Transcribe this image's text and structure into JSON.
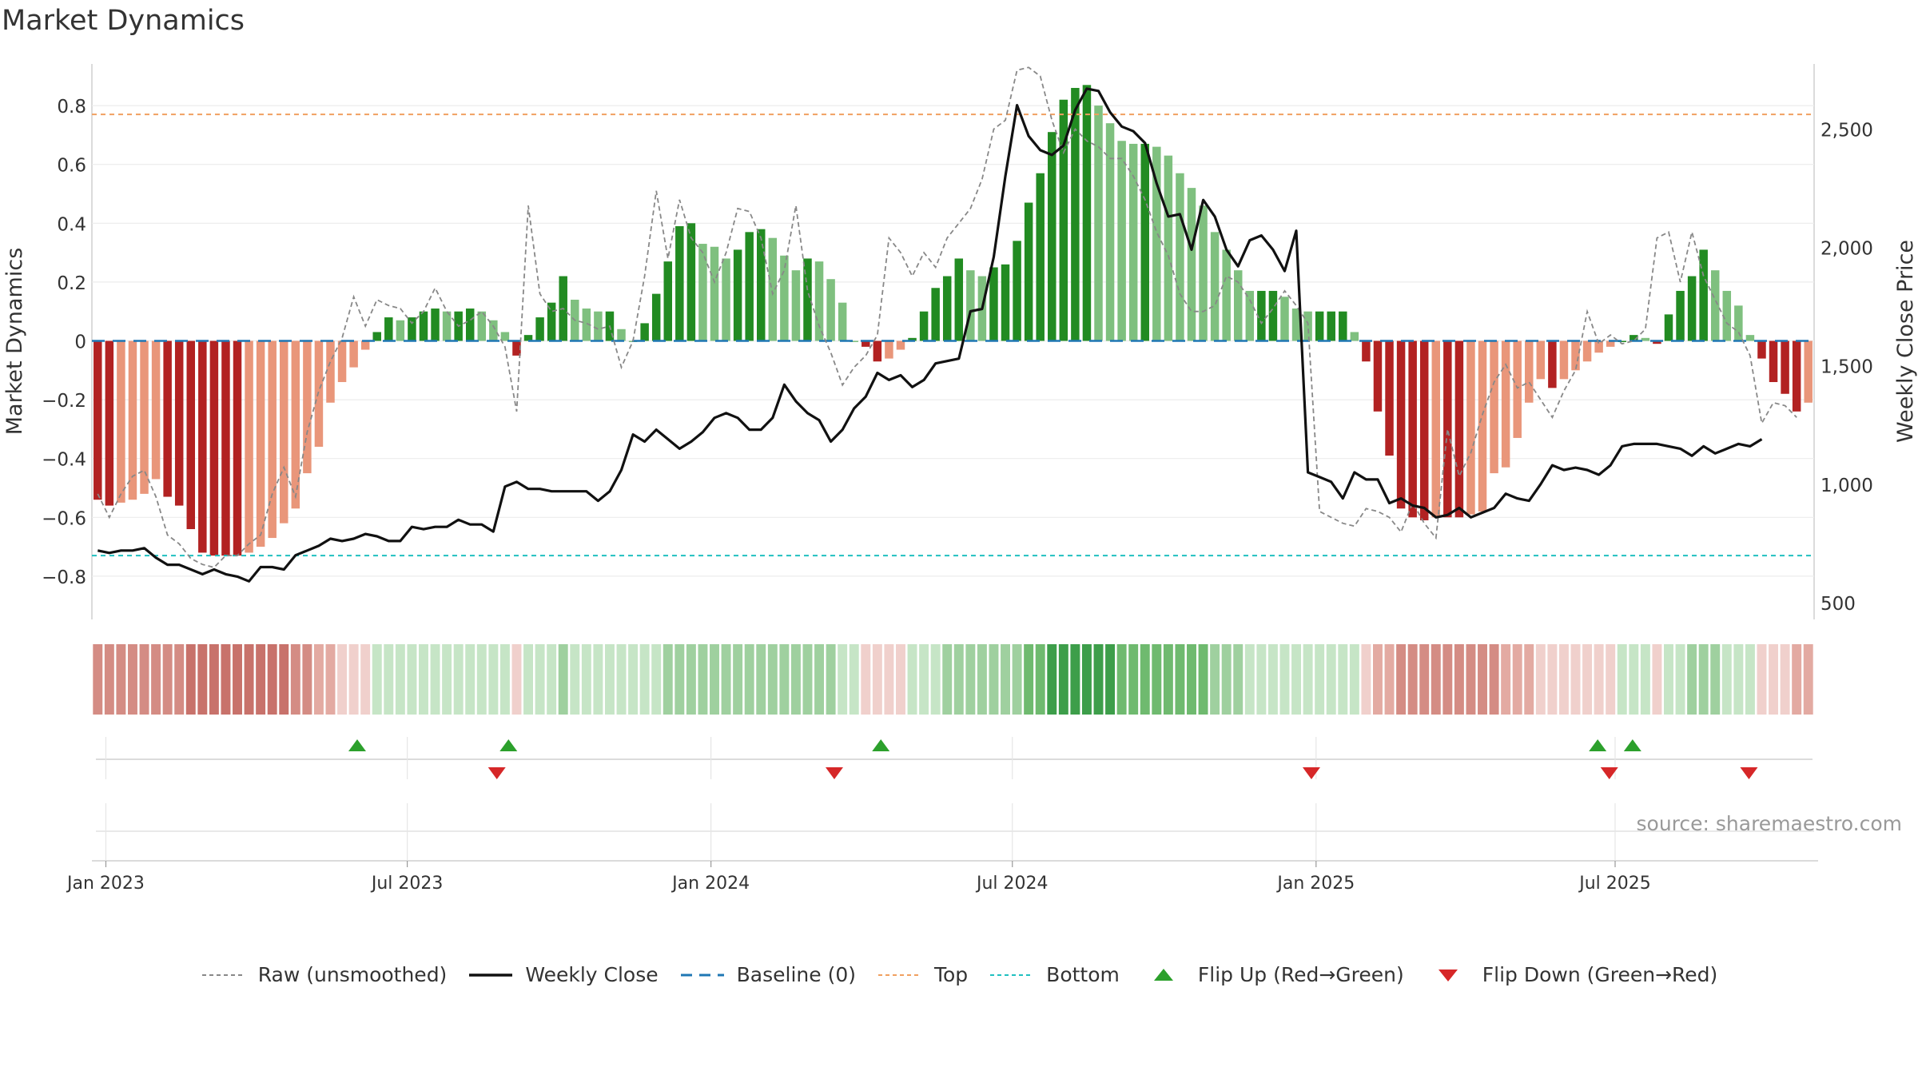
{
  "chart_data": {
    "type": "bar",
    "title": "Market Dynamics",
    "ylabel": "Market Dynamics",
    "y2label": "Weekly Close Price",
    "ylim": [
      -0.92,
      0.93
    ],
    "y2lim": [
      310,
      2760
    ],
    "yticks": [
      -0.8,
      -0.6,
      -0.4,
      -0.2,
      0,
      0.2,
      0.4,
      0.6,
      0.8
    ],
    "ytick_labels": [
      "−0.8",
      "−0.6",
      "−0.4",
      "−0.2",
      "0",
      "0.2",
      "0.4",
      "0.6",
      "0.8"
    ],
    "y2ticks": [
      500,
      1000,
      1500,
      2000,
      2500
    ],
    "y2tick_labels": [
      "500",
      "1,000",
      "1,500",
      "2,000",
      "2,500"
    ],
    "xtick_labels": [
      "Jan 2023",
      "Jul 2023",
      "Jan 2024",
      "Jul 2024",
      "Jan 2025",
      "Jul 2025"
    ],
    "xtick_weeks": [
      0.7,
      26.6,
      52.7,
      78.6,
      104.7,
      130.4
    ],
    "top_line": 0.77,
    "bottom_line": -0.73,
    "market_dynamics": [
      -0.54,
      -0.56,
      -0.55,
      -0.54,
      -0.52,
      -0.47,
      -0.53,
      -0.56,
      -0.64,
      -0.72,
      -0.73,
      -0.73,
      -0.73,
      -0.72,
      -0.7,
      -0.67,
      -0.62,
      -0.57,
      -0.45,
      -0.36,
      -0.21,
      -0.14,
      -0.09,
      -0.03,
      0.03,
      0.08,
      0.07,
      0.08,
      0.1,
      0.11,
      0.1,
      0.1,
      0.11,
      0.1,
      0.07,
      0.03,
      -0.05,
      0.02,
      0.08,
      0.13,
      0.22,
      0.14,
      0.11,
      0.1,
      0.1,
      0.04,
      0.0,
      0.06,
      0.16,
      0.27,
      0.39,
      0.4,
      0.33,
      0.32,
      0.28,
      0.31,
      0.37,
      0.38,
      0.35,
      0.29,
      0.24,
      0.28,
      0.27,
      0.21,
      0.13,
      0.0,
      -0.02,
      -0.07,
      -0.06,
      -0.03,
      0.01,
      0.1,
      0.18,
      0.22,
      0.28,
      0.24,
      0.22,
      0.25,
      0.26,
      0.34,
      0.47,
      0.57,
      0.71,
      0.82,
      0.86,
      0.87,
      0.8,
      0.74,
      0.68,
      0.67,
      0.67,
      0.66,
      0.63,
      0.57,
      0.52,
      0.46,
      0.37,
      0.31,
      0.24,
      0.17,
      0.17,
      0.17,
      0.15,
      0.11,
      0.1,
      0.1,
      0.1,
      0.1,
      0.03,
      -0.07,
      -0.24,
      -0.39,
      -0.57,
      -0.6,
      -0.61,
      -0.6,
      -0.6,
      -0.6,
      -0.59,
      -0.58,
      -0.45,
      -0.43,
      -0.33,
      -0.21,
      -0.13,
      -0.16,
      -0.13,
      -0.1,
      -0.07,
      -0.04,
      -0.02,
      0.0,
      0.02,
      0.01,
      -0.01,
      0.09,
      0.17,
      0.22,
      0.31,
      0.24,
      0.17,
      0.12,
      0.02,
      -0.06,
      -0.14,
      -0.18,
      -0.24,
      -0.21
    ],
    "raw_unsmoothed": [
      -0.52,
      -0.6,
      -0.52,
      -0.46,
      -0.44,
      -0.53,
      -0.66,
      -0.69,
      -0.74,
      -0.76,
      -0.77,
      -0.73,
      -0.73,
      -0.69,
      -0.66,
      -0.52,
      -0.43,
      -0.53,
      -0.31,
      -0.17,
      -0.07,
      0.01,
      0.15,
      0.05,
      0.14,
      0.12,
      0.11,
      0.06,
      0.1,
      0.18,
      0.1,
      0.05,
      0.07,
      0.1,
      0.05,
      -0.02,
      -0.24,
      0.46,
      0.16,
      0.1,
      0.11,
      0.07,
      0.06,
      0.04,
      0.05,
      -0.09,
      0.0,
      0.22,
      0.51,
      0.28,
      0.48,
      0.35,
      0.3,
      0.2,
      0.3,
      0.45,
      0.44,
      0.35,
      0.16,
      0.24,
      0.46,
      0.17,
      0.05,
      -0.04,
      -0.15,
      -0.09,
      -0.05,
      0.02,
      0.35,
      0.3,
      0.22,
      0.3,
      0.25,
      0.35,
      0.4,
      0.45,
      0.55,
      0.72,
      0.75,
      0.92,
      0.93,
      0.9,
      0.75,
      0.64,
      0.72,
      0.68,
      0.66,
      0.62,
      0.62,
      0.56,
      0.48,
      0.37,
      0.29,
      0.16,
      0.1,
      0.1,
      0.12,
      0.22,
      0.2,
      0.14,
      0.06,
      0.11,
      0.17,
      0.12,
      0.06,
      -0.58,
      -0.6,
      -0.62,
      -0.63,
      -0.57,
      -0.58,
      -0.6,
      -0.65,
      -0.55,
      -0.62,
      -0.67,
      -0.3,
      -0.46,
      -0.38,
      -0.25,
      -0.14,
      -0.08,
      -0.16,
      -0.14,
      -0.2,
      -0.26,
      -0.17,
      -0.1,
      0.1,
      -0.01,
      0.02,
      -0.01,
      0.0,
      0.04,
      0.35,
      0.37,
      0.2,
      0.37,
      0.22,
      0.14,
      0.06,
      0.03,
      -0.05,
      -0.28,
      -0.21,
      -0.22,
      -0.26
    ],
    "weekly_close": [
      720,
      710,
      720,
      720,
      730,
      690,
      660,
      660,
      640,
      620,
      640,
      620,
      610,
      590,
      650,
      650,
      640,
      700,
      720,
      740,
      770,
      760,
      770,
      790,
      780,
      760,
      760,
      820,
      810,
      820,
      820,
      850,
      830,
      830,
      800,
      990,
      1010,
      980,
      980,
      970,
      970,
      970,
      970,
      930,
      970,
      1060,
      1210,
      1180,
      1230,
      1190,
      1150,
      1180,
      1220,
      1280,
      1300,
      1280,
      1230,
      1230,
      1280,
      1420,
      1350,
      1300,
      1270,
      1180,
      1230,
      1320,
      1370,
      1470,
      1440,
      1460,
      1410,
      1440,
      1510,
      1520,
      1530,
      1730,
      1740,
      1960,
      2300,
      2600,
      2470,
      2410,
      2390,
      2430,
      2580,
      2670,
      2660,
      2570,
      2510,
      2490,
      2440,
      2270,
      2130,
      2140,
      1990,
      2200,
      2130,
      1990,
      1920,
      2030,
      2050,
      1990,
      1900,
      2070,
      1050,
      1030,
      1010,
      940,
      1050,
      1020,
      1020,
      920,
      940,
      910,
      900,
      860,
      870,
      900,
      860,
      880,
      900,
      960,
      940,
      930,
      1000,
      1080,
      1060,
      1070,
      1060,
      1040,
      1080,
      1160,
      1170,
      1170,
      1170,
      1160,
      1150,
      1120,
      1160,
      1130,
      1150,
      1170,
      1160,
      1190
    ],
    "strip_levels": [
      -0.54,
      -0.56,
      -0.55,
      -0.54,
      -0.52,
      -0.47,
      -0.53,
      -0.56,
      -0.64,
      -0.72,
      -0.73,
      -0.73,
      -0.73,
      -0.72,
      -0.7,
      -0.67,
      -0.62,
      -0.57,
      -0.45,
      -0.36,
      -0.21,
      -0.14,
      -0.09,
      -0.03,
      0.03,
      0.08,
      0.07,
      0.08,
      0.1,
      0.11,
      0.1,
      0.1,
      0.11,
      0.1,
      0.07,
      0.03,
      -0.05,
      0.02,
      0.08,
      0.13,
      0.22,
      0.14,
      0.11,
      0.1,
      0.1,
      0.04,
      0.0,
      0.06,
      0.16,
      0.27,
      0.39,
      0.4,
      0.33,
      0.32,
      0.28,
      0.31,
      0.37,
      0.38,
      0.35,
      0.29,
      0.24,
      0.28,
      0.27,
      0.21,
      0.13,
      0.0,
      -0.02,
      -0.07,
      -0.06,
      -0.03,
      0.01,
      0.1,
      0.18,
      0.22,
      0.28,
      0.24,
      0.22,
      0.25,
      0.26,
      0.34,
      0.47,
      0.57,
      0.71,
      0.82,
      0.86,
      0.87,
      0.8,
      0.74,
      0.68,
      0.67,
      0.67,
      0.66,
      0.63,
      0.57,
      0.52,
      0.46,
      0.37,
      0.31,
      0.24,
      0.17,
      0.17,
      0.17,
      0.15,
      0.11,
      0.1,
      0.1,
      0.1,
      0.1,
      0.03,
      -0.07,
      -0.24,
      -0.39,
      -0.57,
      -0.6,
      -0.61,
      -0.6,
      -0.6,
      -0.6,
      -0.59,
      -0.58,
      -0.45,
      -0.43,
      -0.33,
      -0.21,
      -0.13,
      -0.16,
      -0.13,
      -0.1,
      -0.07,
      -0.04,
      -0.02,
      0.0,
      0.02,
      0.01,
      -0.01,
      0.09,
      0.17,
      0.22,
      0.31,
      0.24,
      0.17,
      0.12,
      0.02,
      -0.06,
      -0.14,
      -0.18,
      -0.24,
      -0.21
    ],
    "flip_up_weeks": [
      22.3,
      35.3,
      67.3,
      128.9,
      131.9
    ],
    "flip_down_weeks": [
      34.3,
      63.3,
      104.3,
      129.9,
      141.9
    ],
    "colors": {
      "green_strong": "#228b22",
      "green_light": "#7fc07f",
      "red_strong": "#b22222",
      "red_light": "#e9967a",
      "close_line": "#111111",
      "raw_line": "#888888",
      "baseline": "#1f77b4",
      "top": "#f0a060",
      "bottom": "#20c0c0",
      "flip_up": "#2ca02c",
      "flip_down": "#d62728"
    },
    "legend": [
      {
        "key": "raw",
        "label": "Raw (unsmoothed)"
      },
      {
        "key": "close",
        "label": "Weekly Close"
      },
      {
        "key": "baseline",
        "label": "Baseline (0)"
      },
      {
        "key": "top",
        "label": "Top"
      },
      {
        "key": "bottom",
        "label": "Bottom"
      },
      {
        "key": "flip_up",
        "label": "Flip Up (Red→Green)"
      },
      {
        "key": "flip_down",
        "label": "Flip Down (Green→Red)"
      }
    ],
    "source": "source: sharemaestro.com"
  }
}
